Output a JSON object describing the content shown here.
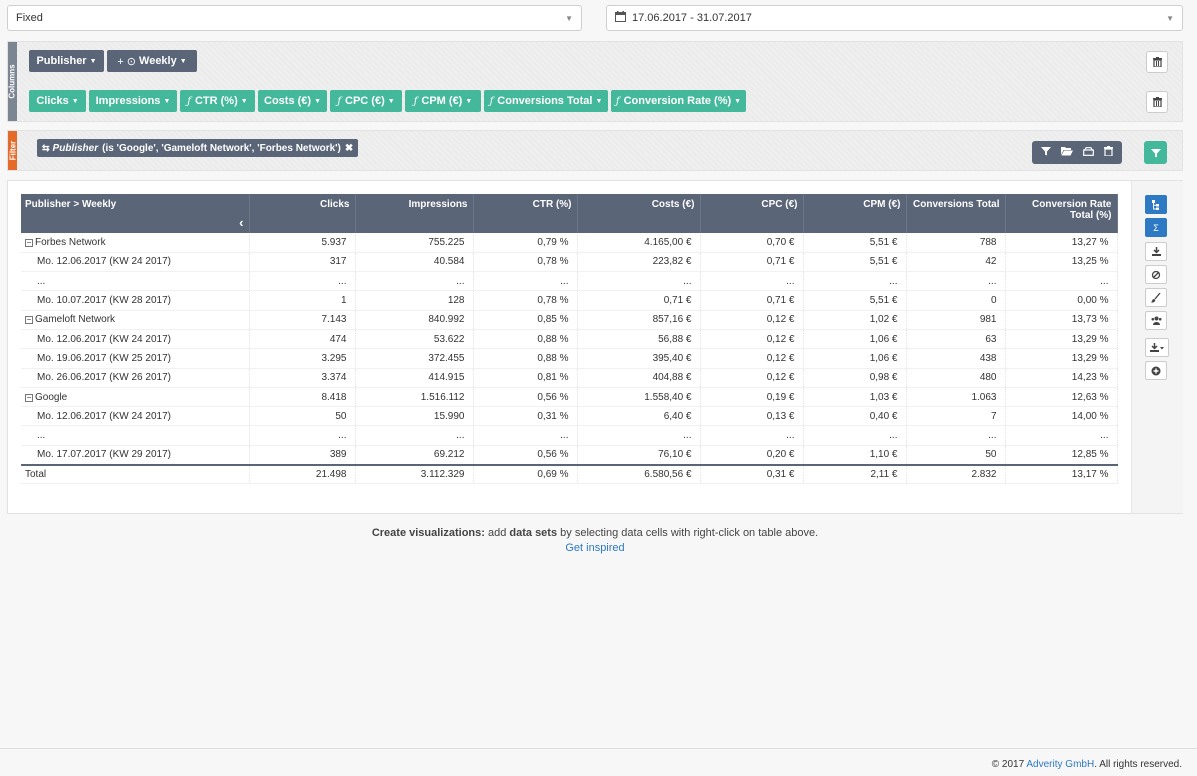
{
  "period_select": {
    "value": "Fixed"
  },
  "date_select": {
    "value": "17.06.2017 - 31.07.2017"
  },
  "columns_panel": {
    "tab_label": "Columns",
    "dimensions": [
      {
        "label": "Publisher"
      },
      {
        "label": "Weekly",
        "icons": "+ ⊙"
      }
    ],
    "metrics": [
      {
        "label": "Clicks",
        "calculated": false
      },
      {
        "label": "Impressions",
        "calculated": false
      },
      {
        "label": "CTR (%)",
        "calculated": true
      },
      {
        "label": "Costs (€)",
        "calculated": false
      },
      {
        "label": "CPC (€)",
        "calculated": true
      },
      {
        "label": "CPM (€)",
        "calculated": true
      },
      {
        "label": "Conversions Total",
        "calculated": true
      },
      {
        "label": "Conversion Rate (%)",
        "calculated": true
      }
    ],
    "fx_symbol": "ƒ"
  },
  "filter_panel": {
    "tab_label": "Filter",
    "filter": {
      "field": "Publisher",
      "condition": "(is 'Google', 'Gameloft Network', 'Forbes Network')"
    }
  },
  "table": {
    "headers": [
      "Publisher > Weekly",
      "Clicks",
      "Impressions",
      "CTR (%)",
      "Costs (€)",
      "CPC (€)",
      "CPM (€)",
      "Conversions Total",
      "Conversion Rate Total (%)"
    ],
    "rows": [
      {
        "type": "group",
        "cells": [
          "Forbes Network",
          "5.937",
          "755.225",
          "0,79 %",
          "4.165,00 €",
          "0,70 €",
          "5,51 €",
          "788",
          "13,27 %"
        ]
      },
      {
        "type": "child",
        "cells": [
          "Mo. 12.06.2017 (KW 24 2017)",
          "317",
          "40.584",
          "0,78 %",
          "223,82 €",
          "0,71 €",
          "5,51 €",
          "42",
          "13,25 %"
        ]
      },
      {
        "type": "child",
        "cells": [
          "...",
          "...",
          "...",
          "...",
          "...",
          "...",
          "...",
          "...",
          "..."
        ]
      },
      {
        "type": "child",
        "cells": [
          "Mo. 10.07.2017 (KW 28 2017)",
          "1",
          "128",
          "0,78 %",
          "0,71 €",
          "0,71 €",
          "5,51 €",
          "0",
          "0,00 %"
        ]
      },
      {
        "type": "group",
        "cells": [
          "Gameloft Network",
          "7.143",
          "840.992",
          "0,85 %",
          "857,16 €",
          "0,12 €",
          "1,02 €",
          "981",
          "13,73 %"
        ]
      },
      {
        "type": "child",
        "cells": [
          "Mo. 12.06.2017 (KW 24 2017)",
          "474",
          "53.622",
          "0,88 %",
          "56,88 €",
          "0,12 €",
          "1,06 €",
          "63",
          "13,29 %"
        ]
      },
      {
        "type": "child",
        "cells": [
          "Mo. 19.06.2017 (KW 25 2017)",
          "3.295",
          "372.455",
          "0,88 %",
          "395,40 €",
          "0,12 €",
          "1,06 €",
          "438",
          "13,29 %"
        ]
      },
      {
        "type": "child",
        "cells": [
          "Mo. 26.06.2017 (KW 26 2017)",
          "3.374",
          "414.915",
          "0,81 %",
          "404,88 €",
          "0,12 €",
          "0,98 €",
          "480",
          "14,23 %"
        ]
      },
      {
        "type": "group",
        "cells": [
          "Google",
          "8.418",
          "1.516.112",
          "0,56 %",
          "1.558,40 €",
          "0,19 €",
          "1,03 €",
          "1.063",
          "12,63 %"
        ]
      },
      {
        "type": "child",
        "cells": [
          "Mo. 12.06.2017 (KW 24 2017)",
          "50",
          "15.990",
          "0,31 %",
          "6,40 €",
          "0,13 €",
          "0,40 €",
          "7",
          "14,00 %"
        ]
      },
      {
        "type": "child",
        "cells": [
          "...",
          "...",
          "...",
          "...",
          "...",
          "...",
          "...",
          "...",
          "..."
        ]
      },
      {
        "type": "child",
        "cells": [
          "Mo. 17.07.2017 (KW 29 2017)",
          "389",
          "69.212",
          "0,56 %",
          "76,10 €",
          "0,20 €",
          "1,10 €",
          "50",
          "12,85 %"
        ]
      },
      {
        "type": "total",
        "cells": [
          "Total",
          "21.498",
          "3.112.329",
          "0,69 %",
          "6.580,56 €",
          "0,31 €",
          "2,11 €",
          "2.832",
          "13,17 %"
        ]
      }
    ]
  },
  "side_tools": [
    "hierarchy-icon",
    "sum-icon",
    "download-icon",
    "chart-icon",
    "brush-icon",
    "users-icon",
    "export-icon",
    "add-icon"
  ],
  "viz_hint": {
    "strong1": "Create visualizations:",
    "part1": " add ",
    "strong2": "data sets",
    "part2": " by selecting data cells with right-click on table above.",
    "link": "Get inspired"
  },
  "footer": {
    "prefix": "© 2017 ",
    "company": "Adverity GmbH",
    "suffix": ". All rights reserved."
  },
  "colors": {
    "dimension_chip": "#5a6578",
    "metric_chip": "#44b89a",
    "filter_tab": "#e46b2a",
    "accent": "#2d79c4"
  }
}
